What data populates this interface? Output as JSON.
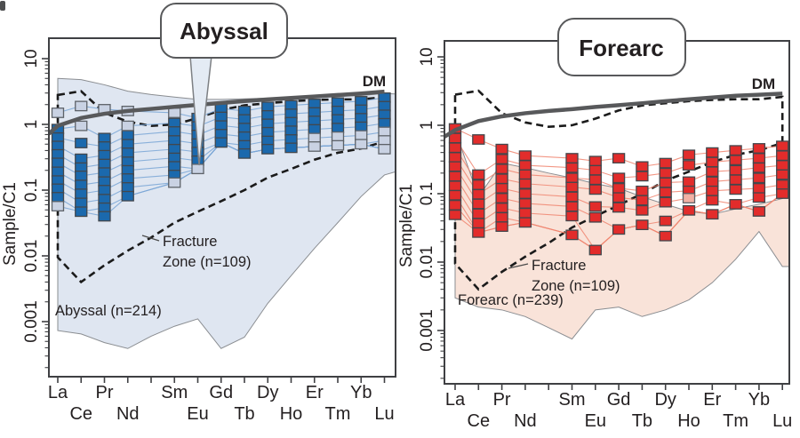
{
  "shared": {
    "elements": [
      "La",
      "Ce",
      "Pr",
      "Nd",
      "",
      "Sm",
      "Eu",
      "Gd",
      "Tb",
      "Dy",
      "Ho",
      "Er",
      "Tm",
      "Yb",
      "Lu"
    ],
    "element_label_row": [
      1,
      2,
      1,
      2,
      0,
      1,
      2,
      1,
      2,
      1,
      2,
      1,
      2,
      1,
      2
    ],
    "colors": {
      "frame": "#3f4043",
      "text": "#231f20",
      "dm_line": "#58595b",
      "dashed_line": "#1b1b1b",
      "envelope_stroke": "#8a8d91",
      "leader_line": "#4a4a4a"
    }
  },
  "chart_data": [
    {
      "type": "scatter",
      "title": "Abyssal",
      "title_color": "#176bb3",
      "y_axis_label": "Sample/C1",
      "y_tick_labels": [
        "10",
        "1",
        "0.1",
        "0.01",
        "0.001"
      ],
      "y_tick_values": [
        10,
        1,
        0.1,
        0.01,
        0.001
      ],
      "ylim": [
        0.00015,
        20
      ],
      "dm_label": "DM",
      "envelope_label": "Abyssal (n=214)",
      "fz_label_line1": "Fracture",
      "fz_label_line2": "Zone (n=109)",
      "square_color": "#1b69ad",
      "square_alt_color": "#c9d2e3",
      "line_color": "#7aa6d6",
      "envelope_fill": "#dfe6f1",
      "columns_main": [
        [
          0.85,
          0.63,
          0.47,
          0.35,
          0.26,
          0.19,
          0.14,
          0.105,
          0.078
        ],
        [
          0.52,
          0.3,
          0.22,
          0.165,
          0.12,
          0.088,
          0.064,
          0.047
        ],
        [
          0.62,
          0.46,
          0.34,
          0.25,
          0.185,
          0.135,
          0.1,
          0.073,
          0.054,
          0.04
        ],
        [
          0.68,
          0.5,
          0.37,
          0.27,
          0.2,
          0.15,
          0.11,
          0.081
        ],
        [],
        [
          1.05,
          0.78,
          0.57,
          0.42,
          0.31,
          0.23,
          0.17
        ],
        [
          1.25,
          0.93,
          0.69,
          0.51,
          0.38,
          0.28
        ],
        [
          1.75,
          1.3,
          0.96,
          0.71,
          0.53
        ],
        [
          1.6,
          1.19,
          0.88,
          0.65,
          0.48,
          0.36
        ],
        [
          1.85,
          1.37,
          1.02,
          0.76,
          0.56,
          0.42
        ],
        [
          1.95,
          1.45,
          1.08,
          0.8,
          0.59,
          0.44
        ],
        [
          2.05,
          1.52,
          1.13,
          0.84
        ],
        [
          2.15,
          1.6,
          1.19,
          0.88
        ],
        [
          2.25,
          1.67,
          1.24,
          0.92
        ],
        [
          2.55,
          1.89,
          1.4,
          1.04
        ]
      ],
      "columns_alt": [
        [
          1.5,
          0.057
        ],
        [
          1.9,
          0.95
        ],
        [
          1.7
        ],
        [
          1.6,
          0.95
        ],
        [],
        [
          1.5,
          0.13
        ],
        [
          0.21
        ],
        [],
        [],
        [],
        [],
        [
          0.62,
          0.46
        ],
        [
          0.65,
          0.48
        ],
        [
          0.68,
          0.5
        ],
        [
          0.77,
          0.57,
          0.42
        ]
      ],
      "envelope_upper": [
        5.0,
        4.8,
        4.0,
        3.2,
        2.85,
        2.6,
        2.4,
        2.4,
        2.45,
        2.5,
        2.55,
        2.6,
        2.65,
        2.75,
        2.95
      ],
      "envelope_lower": [
        0.00073,
        0.00065,
        0.00048,
        0.00039,
        0.0006,
        0.00085,
        0.0011,
        0.00039,
        0.00058,
        0.0019,
        0.005,
        0.013,
        0.032,
        0.08,
        0.17
      ],
      "envelope_right_edge": [
        2.9,
        0.19
      ],
      "fz_upper": [
        2.8,
        3.2,
        1.5,
        1.1,
        0.95,
        1.0,
        1.25,
        1.65,
        1.95,
        2.1,
        2.25,
        2.35,
        2.4,
        2.4,
        2.6
      ],
      "fz_lower": [
        0.0095,
        0.004,
        0.0072,
        0.012,
        0.019,
        0.032,
        0.047,
        0.068,
        0.1,
        0.155,
        0.21,
        0.29,
        0.37,
        0.43,
        0.55
      ],
      "dm_values": [
        0.95,
        1.25,
        1.45,
        1.6,
        1.72,
        1.85,
        1.98,
        2.12,
        2.26,
        2.4,
        2.52,
        2.65,
        2.8,
        2.95,
        3.15
      ],
      "dm_edge_value": 0.72
    },
    {
      "type": "scatter",
      "title": "Forearc",
      "title_color": "#e5232b",
      "y_axis_label": "Sample/C1",
      "y_tick_labels": [
        "10",
        "1",
        "0.1",
        "0.01",
        "0.001"
      ],
      "y_tick_values": [
        10,
        1,
        0.1,
        0.01,
        0.001
      ],
      "ylim": [
        0.00017,
        17
      ],
      "dm_label": "DM",
      "envelope_label": "Forearc (n=239)",
      "fz_label_line1": "Fracture",
      "fz_label_line2": "Zone (n=109)",
      "square_color": "#e22c2b",
      "square_alt_color": "#f2b0a4",
      "line_color": "#f08570",
      "envelope_fill": "#f9e3d9",
      "columns_main": [
        [
          0.9,
          0.65,
          0.47,
          0.34,
          0.25,
          0.18,
          0.13,
          0.095,
          0.068,
          0.049
        ],
        [
          0.62,
          0.19,
          0.135,
          0.098,
          0.071,
          0.051,
          0.037,
          0.027
        ],
        [
          0.45,
          0.32,
          0.23,
          0.165,
          0.12,
          0.086,
          0.062,
          0.045,
          0.033
        ],
        [
          0.36,
          0.26,
          0.19,
          0.14,
          0.1,
          0.072,
          0.052,
          0.038
        ],
        [],
        [
          0.33,
          0.24,
          0.17,
          0.125,
          0.09,
          0.065,
          0.047,
          0.025
        ],
        [
          0.3,
          0.22,
          0.16,
          0.115,
          0.065,
          0.045,
          0.015
        ],
        [
          0.33,
          0.17,
          0.12,
          0.088,
          0.063,
          0.03
        ],
        [
          0.25,
          0.18,
          0.11,
          0.08,
          0.057,
          0.035
        ],
        [
          0.28,
          0.2,
          0.145,
          0.105,
          0.075,
          0.04,
          0.024
        ],
        [
          0.37,
          0.26,
          0.15,
          0.11,
          0.057
        ],
        [
          0.4,
          0.29,
          0.21,
          0.15,
          0.11,
          0.08,
          0.05
        ],
        [
          0.43,
          0.31,
          0.22,
          0.16,
          0.115,
          0.07
        ],
        [
          0.46,
          0.33,
          0.24,
          0.17,
          0.12,
          0.088,
          0.055
        ],
        [
          0.5,
          0.36,
          0.26,
          0.19,
          0.135,
          0.1
        ]
      ],
      "columns_alt": [
        [],
        [],
        [],
        [],
        [],
        [],
        [],
        [],
        [],
        [],
        [
          0.086
        ],
        [],
        [],
        [],
        []
      ],
      "envelope_upper": [
        0.85,
        0.09,
        0.28,
        0.24,
        0.2,
        0.17,
        0.14,
        0.12,
        0.09,
        0.07,
        0.055,
        0.05,
        0.06,
        0.07,
        0.085
      ],
      "envelope_lower": [
        0.003,
        0.0022,
        0.002,
        0.0016,
        0.0011,
        0.00075,
        0.002,
        0.0022,
        0.0016,
        0.002,
        0.0028,
        0.005,
        0.011,
        0.028,
        0.0086
      ],
      "envelope_right_edge": [
        0.35,
        0.0086
      ],
      "fz_upper": [
        2.8,
        3.2,
        1.5,
        1.1,
        0.95,
        1.0,
        1.25,
        1.65,
        1.95,
        2.1,
        2.25,
        2.35,
        2.4,
        2.4,
        2.6
      ],
      "fz_lower": [
        0.0095,
        0.004,
        0.0072,
        0.012,
        0.019,
        0.032,
        0.047,
        0.068,
        0.1,
        0.155,
        0.21,
        0.29,
        0.37,
        0.43,
        0.55
      ],
      "dm_values": [
        0.85,
        1.15,
        1.35,
        1.5,
        1.62,
        1.72,
        1.85,
        1.97,
        2.1,
        2.25,
        2.4,
        2.55,
        2.7,
        2.8,
        2.9
      ],
      "dm_edge_value": 0.68
    }
  ]
}
